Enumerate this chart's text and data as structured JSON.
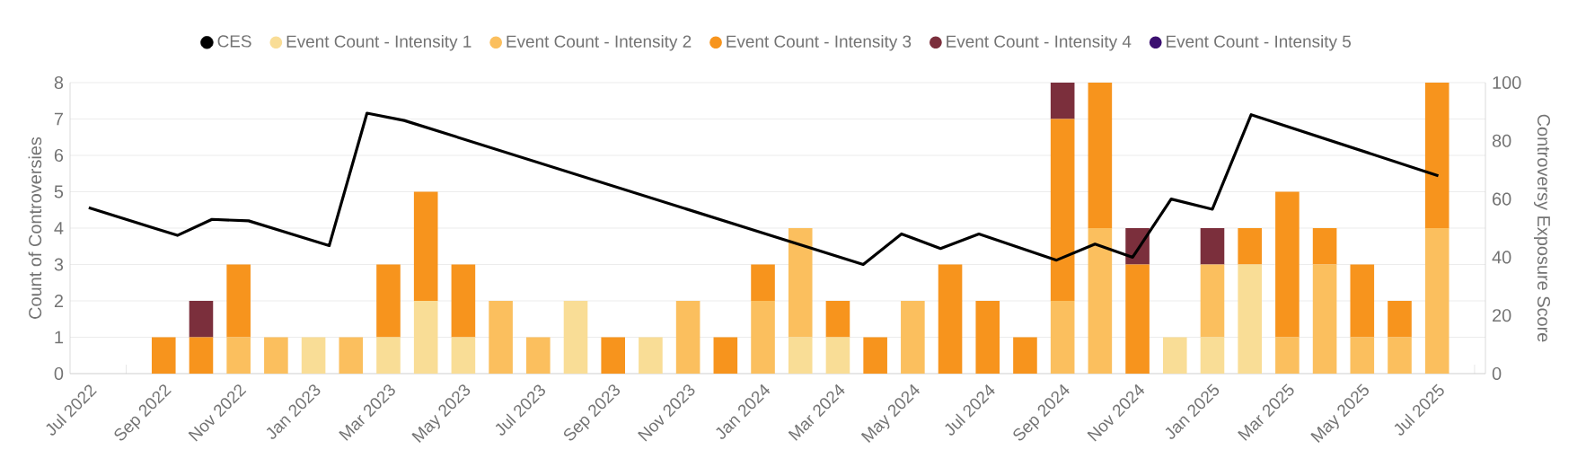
{
  "chart_data": {
    "type": "bar",
    "stacked": true,
    "ylabel": "Count of Controversies",
    "y2label": "Controversy Exposure Score",
    "x": [
      "2022-09",
      "2022-10",
      "2022-11",
      "2022-12",
      "2023-01",
      "2023-02",
      "2023-03",
      "2023-04",
      "2023-05",
      "2023-06",
      "2023-07",
      "2023-08",
      "2023-09",
      "2023-10",
      "2023-11",
      "2023-12",
      "2024-01",
      "2024-02",
      "2024-03",
      "2024-04",
      "2024-05",
      "2024-06",
      "2024-07",
      "2024-08",
      "2024-09",
      "2024-10",
      "2024-11",
      "2024-12",
      "2025-01",
      "2025-02",
      "2025-03",
      "2025-04",
      "2025-05",
      "2025-06",
      "2025-07"
    ],
    "series": [
      {
        "name": "CES",
        "type": "line",
        "axis": "y2",
        "color": "#000000",
        "x": [
          "2022-07-01",
          "2022-09-12",
          "2022-10-10",
          "2022-11-09",
          "2023-01-14",
          "2023-02-13",
          "2023-03-14",
          "2024-03-22",
          "2024-04-22",
          "2024-05-24",
          "2024-06-24",
          "2024-08-27",
          "2024-09-27",
          "2024-10-28",
          "2024-11-28",
          "2025-01-01",
          "2025-02-02",
          "2025-07-02"
        ],
        "values": [
          57,
          47.5,
          53,
          52.5,
          44,
          89.5,
          87,
          37.5,
          48,
          43,
          48,
          39,
          44.5,
          40,
          60,
          56.5,
          89,
          68
        ]
      },
      {
        "name": "Event Count - Intensity 1",
        "color": "#f9dd96",
        "values": [
          null,
          null,
          null,
          null,
          1,
          null,
          1,
          2,
          1,
          null,
          null,
          2,
          null,
          1,
          null,
          null,
          null,
          1,
          1,
          null,
          null,
          null,
          null,
          null,
          null,
          null,
          null,
          1,
          1,
          3,
          null,
          null,
          null,
          null,
          null
        ]
      },
      {
        "name": "Event Count - Intensity 2",
        "color": "#fbbf5e",
        "values": [
          null,
          null,
          1,
          1,
          null,
          1,
          null,
          null,
          null,
          2,
          1,
          null,
          null,
          null,
          2,
          null,
          2,
          3,
          null,
          null,
          2,
          null,
          null,
          null,
          2,
          4,
          null,
          null,
          2,
          null,
          1,
          3,
          1,
          1,
          4
        ]
      },
      {
        "name": "Event Count - Intensity 3",
        "color": "#f7941d",
        "values": [
          1,
          1,
          2,
          null,
          null,
          null,
          2,
          3,
          2,
          null,
          null,
          null,
          1,
          null,
          null,
          1,
          1,
          null,
          1,
          1,
          null,
          3,
          2,
          1,
          5,
          4,
          3,
          null,
          null,
          1,
          4,
          1,
          2,
          1,
          4
        ]
      },
      {
        "name": "Event Count - Intensity 4",
        "color": "#7b2f3c",
        "values": [
          null,
          1,
          null,
          null,
          null,
          null,
          null,
          null,
          null,
          null,
          null,
          null,
          null,
          null,
          null,
          null,
          null,
          null,
          null,
          null,
          null,
          null,
          null,
          null,
          1,
          null,
          1,
          null,
          1,
          null,
          null,
          null,
          null,
          null,
          null
        ]
      },
      {
        "name": "Event Count - Intensity 5",
        "color": "#3b0f70",
        "values": [
          null,
          null,
          null,
          null,
          null,
          null,
          null,
          null,
          null,
          null,
          null,
          null,
          null,
          null,
          null,
          null,
          null,
          null,
          null,
          null,
          null,
          null,
          null,
          null,
          null,
          null,
          null,
          null,
          null,
          null,
          null,
          null,
          null,
          null,
          null
        ]
      }
    ],
    "xlim": [
      "2022-06-16",
      "2025-08-10"
    ],
    "xticks": [
      {
        "value": "2022-07",
        "label": "Jul 2022"
      },
      {
        "value": "2022-08",
        "label": null
      },
      {
        "value": "2022-09",
        "label": "Sep 2022"
      },
      {
        "value": "2022-10",
        "label": null
      },
      {
        "value": "2022-11",
        "label": "Nov 2022"
      },
      {
        "value": "2022-12",
        "label": null
      },
      {
        "value": "2023-01",
        "label": "Jan 2023"
      },
      {
        "value": "2023-02",
        "label": null
      },
      {
        "value": "2023-03",
        "label": "Mar 2023"
      },
      {
        "value": "2023-04",
        "label": null
      },
      {
        "value": "2023-05",
        "label": "May 2023"
      },
      {
        "value": "2023-06",
        "label": null
      },
      {
        "value": "2023-07",
        "label": "Jul 2023"
      },
      {
        "value": "2023-08",
        "label": null
      },
      {
        "value": "2023-09",
        "label": "Sep 2023"
      },
      {
        "value": "2023-10",
        "label": null
      },
      {
        "value": "2023-11",
        "label": "Nov 2023"
      },
      {
        "value": "2023-12",
        "label": null
      },
      {
        "value": "2024-01",
        "label": "Jan 2024"
      },
      {
        "value": "2024-02",
        "label": null
      },
      {
        "value": "2024-03",
        "label": "Mar 2024"
      },
      {
        "value": "2024-04",
        "label": null
      },
      {
        "value": "2024-05",
        "label": "May 2024"
      },
      {
        "value": "2024-06",
        "label": null
      },
      {
        "value": "2024-07",
        "label": "Jul 2024"
      },
      {
        "value": "2024-08",
        "label": null
      },
      {
        "value": "2024-09",
        "label": "Sep 2024"
      },
      {
        "value": "2024-10",
        "label": null
      },
      {
        "value": "2024-11",
        "label": "Nov 2024"
      },
      {
        "value": "2024-12",
        "label": null
      },
      {
        "value": "2025-01",
        "label": "Jan 2025"
      },
      {
        "value": "2025-02",
        "label": null
      },
      {
        "value": "2025-03",
        "label": "Mar 2025"
      },
      {
        "value": "2025-04",
        "label": null
      },
      {
        "value": "2025-05",
        "label": "May 2025"
      },
      {
        "value": "2025-06",
        "label": null
      },
      {
        "value": "2025-07",
        "label": "Jul 2025"
      },
      {
        "value": "2025-08",
        "label": null
      }
    ],
    "ylim": [
      0,
      8
    ],
    "yticks": [
      0,
      1,
      2,
      3,
      4,
      5,
      6,
      7,
      8
    ],
    "y2lim": [
      0,
      100
    ],
    "y2ticks": [
      0,
      20,
      40,
      60,
      80,
      100
    ],
    "grid": "y",
    "legend": "top",
    "marker": "none",
    "line_style": "solid"
  }
}
